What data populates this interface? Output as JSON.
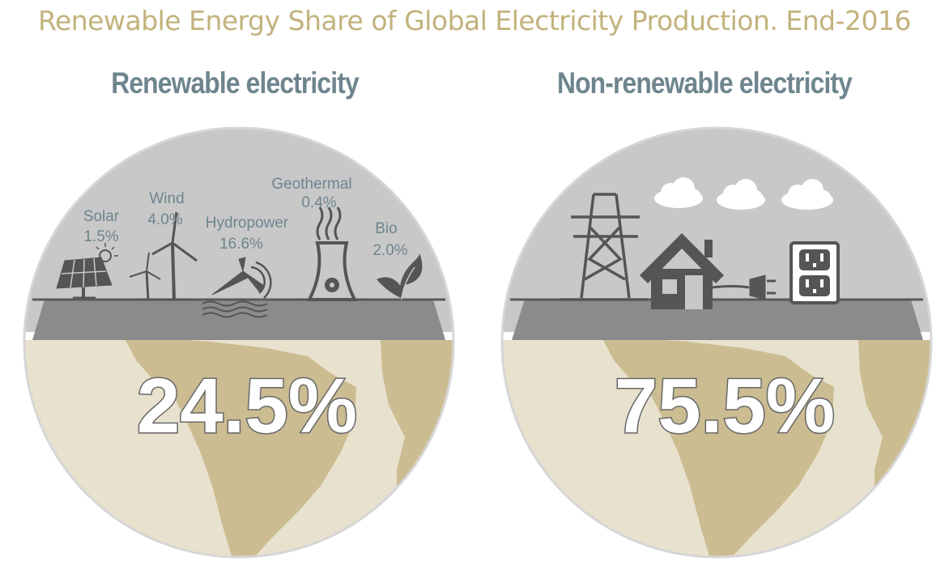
{
  "title": "Renewable Energy Share of Global Electricity Production. End-2016",
  "chart_data": {
    "type": "pie",
    "title": "Renewable Energy Share of Global Electricity Production. End-2016",
    "slices": [
      {
        "name": "Renewable electricity",
        "value": 24.5,
        "label": "24.5%"
      },
      {
        "name": "Non-renewable electricity",
        "value": 75.5,
        "label": "75.5%"
      }
    ],
    "breakdown": [
      {
        "name": "Solar",
        "value": 1.5,
        "label": "1.5%"
      },
      {
        "name": "Wind",
        "value": 4.0,
        "label": "4.0%"
      },
      {
        "name": "Hydropower",
        "value": 16.6,
        "label": "16.6%"
      },
      {
        "name": "Geothermal",
        "value": 0.4,
        "label": "0.4%"
      },
      {
        "name": "Bio",
        "value": 2.0,
        "label": "2.0%"
      }
    ]
  },
  "colors": {
    "title": "#c2b27c",
    "subtitle": "#6e858e",
    "sky": "#c8c8c8",
    "ground": "#8b8b8c",
    "land": "#e8e1cd",
    "continent": "#cbbc92",
    "icon": "#555555"
  },
  "icons": [
    "solar-panel-icon",
    "wind-turbine-icon",
    "hydropower-icon",
    "cooling-tower-icon",
    "leaf-icon",
    "power-pylon-icon",
    "house-icon",
    "plug-icon",
    "outlet-icon",
    "cloud-icon"
  ]
}
